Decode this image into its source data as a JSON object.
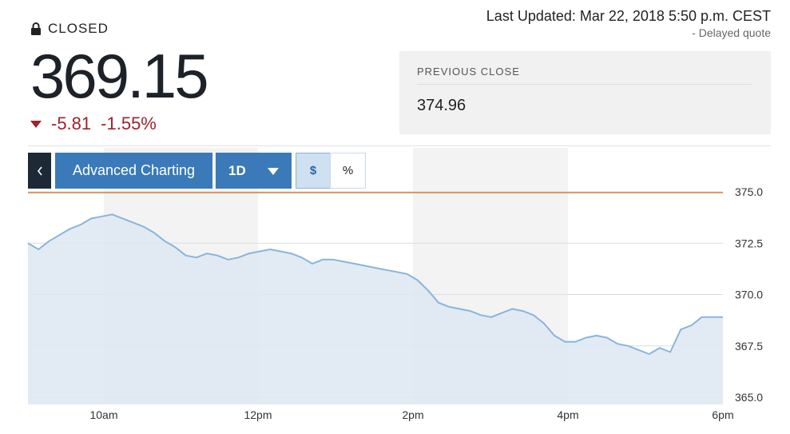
{
  "status": {
    "label": "CLOSED",
    "icon": "lock-icon"
  },
  "last_updated": {
    "text": "Last Updated: Mar 22, 2018 5:50 p.m. CEST",
    "note": "-  Delayed quote"
  },
  "quote": {
    "price": "369.15",
    "change": "-5.81",
    "change_pct": "-1.55%",
    "direction": "down",
    "color": "#a3202b"
  },
  "previous_close": {
    "label": "PREVIOUS CLOSE",
    "value": "374.96"
  },
  "toolbar": {
    "back_icon": "chevron-left-icon",
    "advanced_label": "Advanced Charting",
    "range_label": "1D",
    "range_icon": "caret-down-icon",
    "dollar_label": "$",
    "percent_label": "%",
    "accent": "#3a7ab8"
  },
  "chart_data": {
    "type": "area",
    "x_ticks": [
      "10am",
      "12pm",
      "2pm",
      "4pm",
      "6pm"
    ],
    "y_ticks": [
      "375.0",
      "372.5",
      "370.0",
      "367.5",
      "365.0"
    ],
    "ylim": [
      365.0,
      375.0
    ],
    "reference_line": {
      "value": 374.96,
      "color": "#e07b39"
    },
    "line_color": "#8ab4dc",
    "fill_color": "#dde8f2",
    "series": [
      {
        "values": [
          372.5,
          372.2,
          372.6,
          372.9,
          373.2,
          373.4,
          373.7,
          373.8,
          373.9,
          373.7,
          373.5,
          373.3,
          373.0,
          372.6,
          372.3,
          371.9,
          371.8,
          372.0,
          371.9,
          371.7,
          371.8,
          372.0,
          372.1,
          372.2,
          372.1,
          372.0,
          371.8,
          371.5,
          371.7,
          371.7,
          371.6,
          371.5,
          371.4,
          371.3,
          371.2,
          371.1,
          371.0,
          370.7,
          370.2,
          369.6,
          369.4,
          369.3,
          369.2,
          369.0,
          368.9,
          369.1,
          369.3,
          369.2,
          369.0,
          368.6,
          368.0,
          367.7,
          367.7,
          367.9,
          368.0,
          367.9,
          367.6,
          367.5,
          367.3,
          367.1,
          367.4,
          367.2,
          368.3,
          368.5,
          368.9,
          368.9,
          368.9
        ]
      }
    ]
  }
}
